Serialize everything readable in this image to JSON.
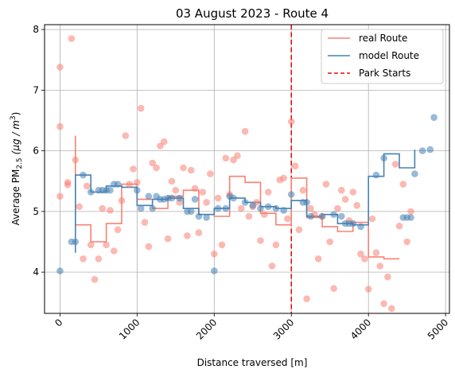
{
  "chart_data": {
    "type": "line",
    "title": "03 August 2023 - Route 4",
    "xlabel": "Distance traversed [m]",
    "ylabel": "Average PM",
    "ylabel_sub": "2.5",
    "ylabel_unit": "(μg / m",
    "ylabel_sup": "3",
    "ylabel_end": ")",
    "xlim": [
      -200,
      5050
    ],
    "ylim": [
      3.32,
      8.08
    ],
    "xticks": [
      0,
      1000,
      2000,
      3000,
      4000,
      5000
    ],
    "xtick_labels": [
      "0",
      "1000",
      "2000",
      "3000",
      "4000",
      "5000"
    ],
    "yticks": [
      4,
      5,
      6,
      7,
      8
    ],
    "ytick_labels": [
      "4",
      "5",
      "6",
      "7",
      "8"
    ],
    "grid": true,
    "legend_position": "top-right",
    "legend": [
      {
        "name": "real Route",
        "color": "#fa8072",
        "style": "solid"
      },
      {
        "name": "model Route",
        "color": "#4682b4",
        "style": "solid"
      },
      {
        "name": "Park Starts",
        "color": "#dd1111",
        "style": "dashed"
      }
    ],
    "series": [
      {
        "name": "real Route",
        "kind": "step",
        "color": "#fa8072",
        "x": [
          200,
          200,
          400,
          400,
          600,
          600,
          800,
          800,
          1000,
          1000,
          1200,
          1200,
          1400,
          1400,
          1600,
          1600,
          1800,
          1800,
          2000,
          2000,
          2200,
          2200,
          2400,
          2400,
          2600,
          2600,
          2800,
          2800,
          3000,
          3000,
          3200,
          3200,
          3400,
          3400,
          3600,
          3600,
          3800,
          3800,
          4000,
          4000,
          4200,
          4200,
          4400
        ],
        "y": [
          6.25,
          4.78,
          4.78,
          4.5,
          4.5,
          4.8,
          4.8,
          5.45,
          5.45,
          5.2,
          5.2,
          5.05,
          5.05,
          5.25,
          5.25,
          5.35,
          5.35,
          4.95,
          4.95,
          4.92,
          4.92,
          5.58,
          5.58,
          5.48,
          5.48,
          4.97,
          4.97,
          4.78,
          4.78,
          5.55,
          5.55,
          4.9,
          4.9,
          4.75,
          4.75,
          4.67,
          4.67,
          4.82,
          4.82,
          4.25,
          4.25,
          4.22,
          4.22
        ]
      },
      {
        "name": "model Route",
        "kind": "step",
        "color": "#4682b4",
        "x": [
          200,
          200,
          400,
          400,
          600,
          600,
          800,
          800,
          1000,
          1000,
          1200,
          1200,
          1400,
          1400,
          1600,
          1600,
          1800,
          1800,
          2000,
          2000,
          2200,
          2200,
          2400,
          2400,
          2600,
          2600,
          2800,
          2800,
          3000,
          3000,
          3200,
          3200,
          3400,
          3400,
          3600,
          3600,
          3800,
          3800,
          4000,
          4000,
          4200,
          4200,
          4400,
          4400,
          4600,
          4600
        ],
        "y": [
          4.32,
          5.6,
          5.6,
          5.32,
          5.32,
          5.42,
          5.42,
          5.4,
          5.4,
          5.1,
          5.1,
          5.2,
          5.2,
          5.22,
          5.22,
          5.05,
          5.05,
          4.95,
          4.95,
          5.05,
          5.05,
          5.22,
          5.22,
          5.15,
          5.15,
          5.08,
          5.08,
          5.05,
          5.05,
          5.18,
          5.18,
          4.92,
          4.92,
          4.95,
          4.95,
          4.8,
          4.8,
          4.78,
          4.78,
          5.58,
          5.58,
          5.95,
          5.95,
          5.72,
          5.72,
          6.02
        ]
      }
    ],
    "scatter_series": [
      {
        "name": "real points",
        "color": "#fa8072",
        "x": [
          0,
          0,
          0,
          100,
          100,
          150,
          200,
          250,
          300,
          350,
          400,
          450,
          500,
          550,
          600,
          650,
          700,
          750,
          800,
          850,
          900,
          950,
          1000,
          1050,
          1100,
          1150,
          1200,
          1250,
          1300,
          1350,
          1400,
          1450,
          1500,
          1550,
          1600,
          1650,
          1700,
          1750,
          1800,
          1850,
          1900,
          1950,
          2000,
          2050,
          2100,
          2150,
          2200,
          2250,
          2300,
          2350,
          2400,
          2450,
          2500,
          2550,
          2600,
          2650,
          2700,
          2750,
          2800,
          2850,
          2900,
          2950,
          3000,
          3050,
          3100,
          3150,
          3200,
          3250,
          3300,
          3350,
          3400,
          3450,
          3500,
          3550,
          3600,
          3650,
          3700,
          3750,
          3800,
          3850,
          3900,
          3950,
          4000,
          4050,
          4100,
          4150,
          4200,
          4250,
          4300,
          4350,
          4400,
          4450,
          4500,
          4550
        ],
        "y": [
          7.38,
          6.4,
          5.25,
          5.48,
          5.44,
          7.85,
          5.85,
          5.08,
          4.22,
          5.42,
          4.45,
          3.88,
          4.22,
          5.05,
          4.45,
          5.02,
          4.35,
          4.7,
          5.18,
          6.25,
          5.45,
          5.7,
          5.48,
          6.7,
          4.82,
          4.42,
          5.8,
          5.72,
          6.08,
          6.15,
          4.55,
          5.5,
          5.35,
          5.15,
          5.72,
          4.6,
          5.68,
          5.38,
          4.65,
          5.32,
          5.15,
          5.62,
          4.3,
          5.22,
          4.45,
          5.88,
          5.28,
          5.85,
          5.92,
          5.05,
          6.32,
          4.92,
          5.08,
          5.15,
          4.52,
          4.95,
          5.32,
          4.1,
          4.45,
          5.52,
          5.55,
          4.88,
          6.48,
          5.75,
          4.7,
          5.35,
          3.56,
          5.05,
          4.95,
          4.22,
          4.92,
          5.45,
          4.5,
          3.73,
          5.05,
          5.35,
          5.2,
          4.85,
          5.32,
          5.1,
          4.3,
          4.22,
          3.72,
          4.88,
          4.32,
          4.1,
          3.48,
          3.92,
          3.4,
          5.78,
          4.76,
          5.45,
          4.5,
          5.0
        ]
      },
      {
        "name": "model points",
        "color": "#4682b4",
        "x": [
          0,
          150,
          200,
          300,
          400,
          500,
          550,
          600,
          650,
          700,
          750,
          1000,
          1050,
          1150,
          1200,
          1250,
          1300,
          1350,
          1400,
          1450,
          1550,
          1650,
          1700,
          1750,
          1800,
          1900,
          2000,
          2050,
          2150,
          2200,
          2250,
          2400,
          2500,
          2600,
          2700,
          2800,
          2900,
          3000,
          3150,
          3200,
          3250,
          3400,
          3550,
          3650,
          3700,
          3750,
          3800,
          3900,
          4100,
          4200,
          4450,
          4500,
          4550,
          4600,
          4700,
          4800,
          4850
        ],
        "y": [
          4.02,
          4.5,
          4.5,
          5.6,
          5.32,
          5.35,
          5.35,
          5.35,
          5.35,
          5.45,
          5.45,
          5.35,
          5.05,
          5.25,
          5.05,
          5.25,
          5.2,
          5.2,
          5.22,
          5.22,
          5.22,
          5.0,
          5.0,
          5.2,
          4.92,
          4.9,
          4.02,
          5.05,
          5.05,
          5.25,
          5.22,
          5.15,
          5.1,
          5.05,
          5.08,
          5.05,
          5.02,
          5.28,
          5.15,
          5.15,
          4.92,
          4.92,
          4.95,
          4.92,
          4.8,
          4.8,
          4.8,
          4.75,
          5.6,
          5.88,
          4.9,
          4.9,
          4.9,
          5.62,
          6.0,
          6.02,
          6.55
        ]
      }
    ],
    "vline": {
      "name": "Park Starts",
      "x": 3000,
      "color": "#dd1111",
      "style": "dashed"
    }
  }
}
